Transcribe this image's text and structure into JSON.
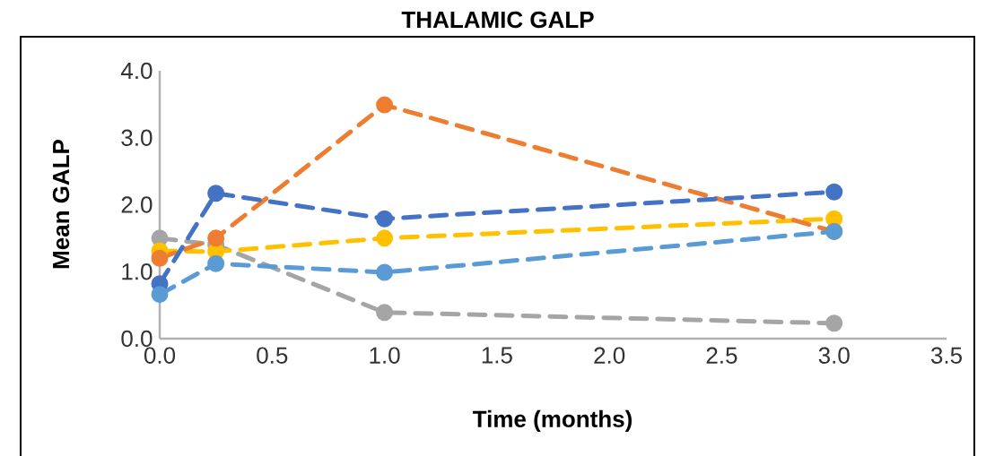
{
  "chart_data": {
    "type": "line",
    "title": "THALAMIC  GALP",
    "xlabel": "Time  (months)",
    "ylabel": "Mean  GALP",
    "xlim": [
      0,
      3.5
    ],
    "ylim": [
      0,
      4
    ],
    "xticks": [
      {
        "value": 0,
        "label": "0.0"
      },
      {
        "value": 0.5,
        "label": "0.5"
      },
      {
        "value": 1,
        "label": "1.0"
      },
      {
        "value": 1.5,
        "label": "1.5"
      },
      {
        "value": 2,
        "label": "2.0"
      },
      {
        "value": 2.5,
        "label": "2.5"
      },
      {
        "value": 3,
        "label": "3.0"
      },
      {
        "value": 3.5,
        "label": "3.5"
      }
    ],
    "yticks": [
      {
        "value": 0,
        "label": "0.0"
      },
      {
        "value": 1,
        "label": "1.0"
      },
      {
        "value": 2,
        "label": "2.0"
      },
      {
        "value": 3,
        "label": "3.0"
      },
      {
        "value": 4,
        "label": "4.0"
      }
    ],
    "x": [
      0,
      0.25,
      1,
      3
    ],
    "series": [
      {
        "color": "#a5a5a5",
        "values": [
          1.5,
          1.4,
          0.39,
          0.23
        ]
      },
      {
        "color": "#ffc000",
        "values": [
          1.31,
          1.3,
          1.5,
          1.79
        ]
      },
      {
        "color": "#ed7d31",
        "values": [
          1.2,
          1.5,
          3.49,
          1.6
        ]
      },
      {
        "color": "#4472c4",
        "values": [
          0.82,
          2.17,
          1.79,
          2.19
        ]
      },
      {
        "color": "#5b9bd5",
        "values": [
          0.66,
          1.12,
          0.99,
          1.6
        ]
      }
    ],
    "grid": false,
    "marker": "circle",
    "line_style": "dashed"
  }
}
